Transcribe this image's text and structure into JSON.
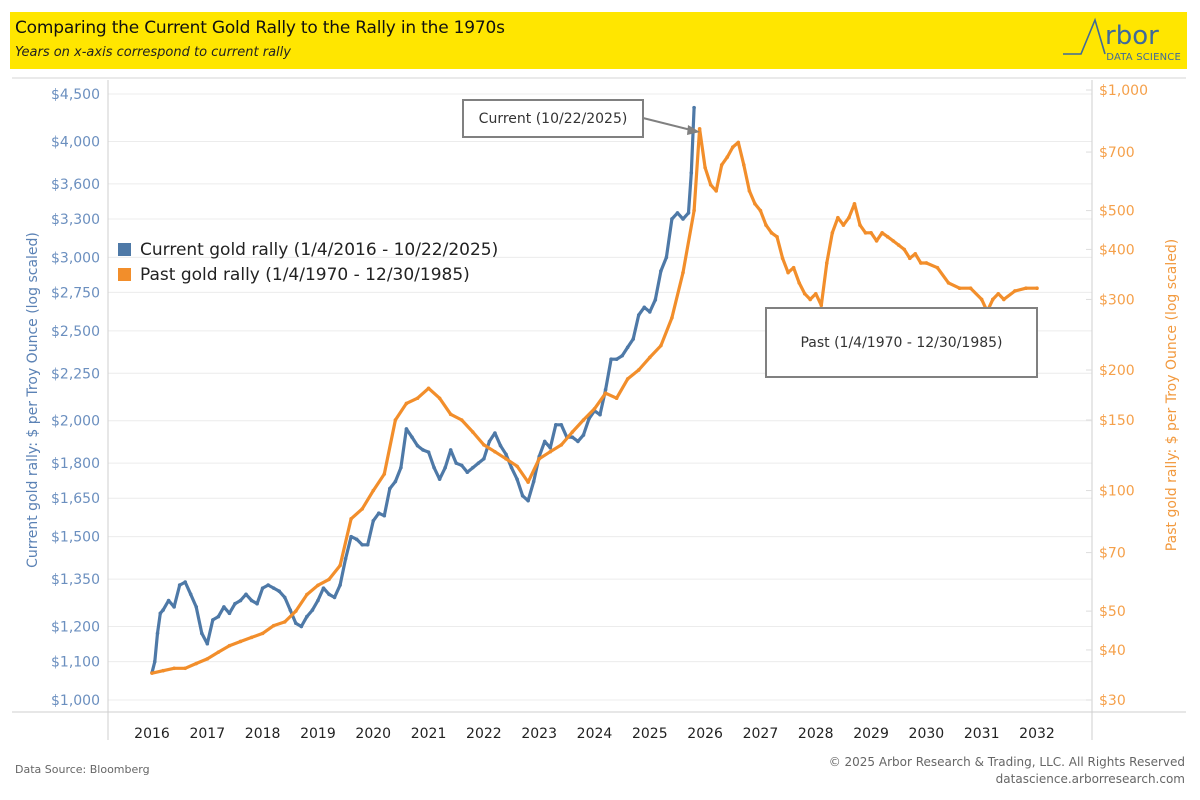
{
  "header": {
    "title": "Comparing the Current Gold Rally to the Rally in the 1970s",
    "subtitle": "Years on x-axis correspond to current rally",
    "logo_word": "rbor",
    "logo_sub": "DATA SCIENCE"
  },
  "footer": {
    "source": "Data Source: Bloomberg",
    "copyright": "© 2025 Arbor Research & Trading, LLC. All Rights Reserved",
    "website": "datascience.arborresearch.com"
  },
  "annotations": {
    "current": "Current (10/22/2025)",
    "past": "Past (1/4/1970 - 12/30/1985)"
  },
  "colors": {
    "current": "#4e79a7",
    "past": "#f28e2b",
    "header_bg": "#ffe600",
    "left_axis_text": "#6b8fbf",
    "right_axis_text": "#f5a04a"
  },
  "chart_data": {
    "type": "line",
    "title": "Comparing the Current Gold Rally to the Rally in the 1970s",
    "subtitle": "Years on x-axis correspond to current rally",
    "xlabel": "",
    "ylabel_left": "Current gold rally: $ per Troy Ounce (log scaled)",
    "ylabel_right": "Past gold rally: $ per Troy Ounce (log scaled)",
    "x_ticks": [
      "2016",
      "2017",
      "2018",
      "2019",
      "2020",
      "2021",
      "2022",
      "2023",
      "2024",
      "2025",
      "2026",
      "2027",
      "2028",
      "2029",
      "2030",
      "2031",
      "2032"
    ],
    "xlim": [
      2015.35,
      2033.15
    ],
    "y_left": {
      "scale": "log",
      "ylim": [
        1000,
        4500
      ],
      "ticks": [
        "$1,000",
        "$1,100",
        "$1,200",
        "$1,350",
        "$1,500",
        "$1,650",
        "$1,800",
        "$2,000",
        "$2,250",
        "$2,500",
        "$2,750",
        "$3,000",
        "$3,300",
        "$3,600",
        "$4,000",
        "$4,500"
      ],
      "tick_values": [
        1000,
        1100,
        1200,
        1350,
        1500,
        1650,
        1800,
        2000,
        2250,
        2500,
        2750,
        3000,
        3300,
        3600,
        4000,
        4500
      ]
    },
    "y_right": {
      "scale": "log",
      "ylim": [
        30,
        1000
      ],
      "ticks": [
        "$30",
        "$40",
        "$50",
        "$70",
        "$100",
        "$150",
        "$200",
        "$300",
        "$400",
        "$500",
        "$700",
        "$1,000"
      ],
      "tick_values": [
        30,
        40,
        50,
        70,
        100,
        150,
        200,
        300,
        400,
        500,
        700,
        1000
      ]
    },
    "legend": {
      "placement": "left-middle",
      "entries": [
        "Current gold rally (1/4/2016 - 10/22/2025)",
        "Past gold rally (1/4/1970 - 12/30/1985)"
      ]
    },
    "grid": true,
    "series": [
      {
        "name": "Current gold rally (1/4/2016 - 10/22/2025)",
        "axis": "left",
        "x": [
          2016.0,
          2016.05,
          2016.1,
          2016.15,
          2016.2,
          2016.3,
          2016.4,
          2016.5,
          2016.6,
          2016.7,
          2016.8,
          2016.9,
          2017.0,
          2017.1,
          2017.2,
          2017.3,
          2017.4,
          2017.5,
          2017.6,
          2017.7,
          2017.8,
          2017.9,
          2018.0,
          2018.1,
          2018.2,
          2018.3,
          2018.4,
          2018.5,
          2018.6,
          2018.7,
          2018.8,
          2018.9,
          2019.0,
          2019.1,
          2019.2,
          2019.3,
          2019.4,
          2019.5,
          2019.6,
          2019.7,
          2019.8,
          2019.9,
          2020.0,
          2020.1,
          2020.2,
          2020.3,
          2020.4,
          2020.5,
          2020.6,
          2020.7,
          2020.8,
          2020.9,
          2021.0,
          2021.1,
          2021.2,
          2021.3,
          2021.4,
          2021.5,
          2021.6,
          2021.7,
          2021.8,
          2021.9,
          2022.0,
          2022.1,
          2022.2,
          2022.3,
          2022.4,
          2022.5,
          2022.6,
          2022.7,
          2022.8,
          2022.9,
          2023.0,
          2023.1,
          2023.2,
          2023.3,
          2023.4,
          2023.5,
          2023.6,
          2023.7,
          2023.8,
          2023.9,
          2024.0,
          2024.1,
          2024.2,
          2024.3,
          2024.4,
          2024.5,
          2024.6,
          2024.7,
          2024.8,
          2024.9,
          2025.0,
          2025.1,
          2025.2,
          2025.3,
          2025.4,
          2025.5,
          2025.6,
          2025.7,
          2025.75,
          2025.8
        ],
        "values": [
          1070,
          1100,
          1180,
          1240,
          1250,
          1280,
          1260,
          1330,
          1340,
          1300,
          1260,
          1180,
          1150,
          1220,
          1230,
          1260,
          1240,
          1270,
          1280,
          1300,
          1280,
          1270,
          1320,
          1330,
          1320,
          1310,
          1290,
          1250,
          1210,
          1200,
          1230,
          1250,
          1280,
          1320,
          1300,
          1290,
          1330,
          1420,
          1500,
          1490,
          1470,
          1470,
          1560,
          1590,
          1580,
          1690,
          1720,
          1780,
          1960,
          1920,
          1880,
          1860,
          1850,
          1780,
          1730,
          1780,
          1860,
          1800,
          1790,
          1760,
          1780,
          1800,
          1820,
          1900,
          1940,
          1880,
          1840,
          1780,
          1730,
          1660,
          1640,
          1720,
          1830,
          1900,
          1870,
          1980,
          1980,
          1920,
          1920,
          1900,
          1930,
          2010,
          2050,
          2030,
          2160,
          2330,
          2330,
          2350,
          2400,
          2450,
          2600,
          2650,
          2620,
          2700,
          2900,
          3000,
          3300,
          3350,
          3300,
          3350,
          3700,
          4350
        ]
      },
      {
        "name": "Past gold rally (1/4/1970 - 12/30/1985)",
        "axis": "right",
        "x": [
          2016.0,
          2016.2,
          2016.4,
          2016.6,
          2016.8,
          2017.0,
          2017.2,
          2017.4,
          2017.6,
          2017.8,
          2018.0,
          2018.2,
          2018.4,
          2018.6,
          2018.8,
          2019.0,
          2019.2,
          2019.4,
          2019.6,
          2019.8,
          2020.0,
          2020.2,
          2020.4,
          2020.6,
          2020.8,
          2021.0,
          2021.2,
          2021.4,
          2021.6,
          2021.8,
          2022.0,
          2022.2,
          2022.4,
          2022.6,
          2022.8,
          2023.0,
          2023.2,
          2023.4,
          2023.6,
          2023.8,
          2024.0,
          2024.2,
          2024.4,
          2024.6,
          2024.8,
          2025.0,
          2025.2,
          2025.4,
          2025.6,
          2025.8,
          2025.9,
          2026.0,
          2026.1,
          2026.2,
          2026.3,
          2026.4,
          2026.5,
          2026.6,
          2026.7,
          2026.8,
          2026.9,
          2027.0,
          2027.1,
          2027.2,
          2027.3,
          2027.4,
          2027.5,
          2027.6,
          2027.7,
          2027.8,
          2027.9,
          2028.0,
          2028.1,
          2028.2,
          2028.3,
          2028.4,
          2028.5,
          2028.6,
          2028.7,
          2028.8,
          2028.9,
          2029.0,
          2029.1,
          2029.2,
          2029.3,
          2029.4,
          2029.5,
          2029.6,
          2029.7,
          2029.8,
          2029.9,
          2030.0,
          2030.2,
          2030.4,
          2030.6,
          2030.8,
          2031.0,
          2031.1,
          2031.2,
          2031.3,
          2031.4,
          2031.6,
          2031.8,
          2032.0
        ],
        "values": [
          35,
          35.5,
          36,
          36,
          37,
          38,
          39.5,
          41,
          42,
          43,
          44,
          46,
          47,
          50,
          55,
          58,
          60,
          65,
          85,
          90,
          100,
          110,
          150,
          165,
          170,
          180,
          170,
          155,
          150,
          140,
          130,
          125,
          120,
          115,
          105,
          120,
          125,
          130,
          140,
          150,
          160,
          175,
          170,
          190,
          200,
          215,
          230,
          270,
          350,
          500,
          800,
          640,
          580,
          560,
          650,
          680,
          720,
          740,
          650,
          560,
          520,
          500,
          460,
          440,
          430,
          380,
          350,
          360,
          330,
          310,
          300,
          310,
          290,
          370,
          440,
          480,
          460,
          480,
          520,
          460,
          440,
          440,
          420,
          440,
          430,
          420,
          410,
          400,
          380,
          390,
          370,
          370,
          360,
          330,
          320,
          320,
          300,
          280,
          300,
          310,
          300,
          315,
          320,
          320
        ]
      }
    ],
    "annotations": [
      {
        "text": "Current (10/22/2025)",
        "points_to": {
          "x": 2025.8,
          "series": "current"
        }
      },
      {
        "text": "Past (1/4/1970 - 12/30/1985)"
      }
    ]
  }
}
